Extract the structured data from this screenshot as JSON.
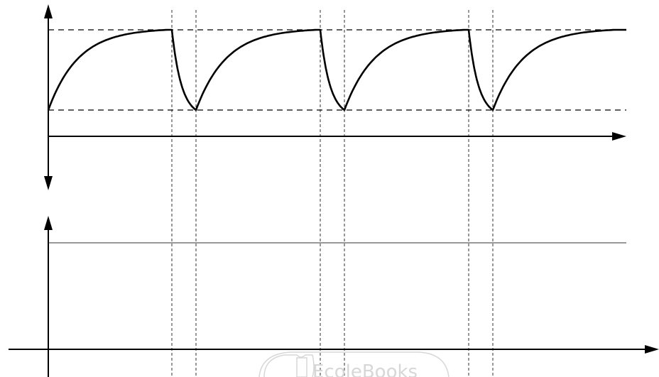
{
  "watermark": {
    "text": "EcoleBooks",
    "color": "#d7d7d7"
  },
  "colors": {
    "ink": "#000000",
    "background": "#ffffff"
  }
}
